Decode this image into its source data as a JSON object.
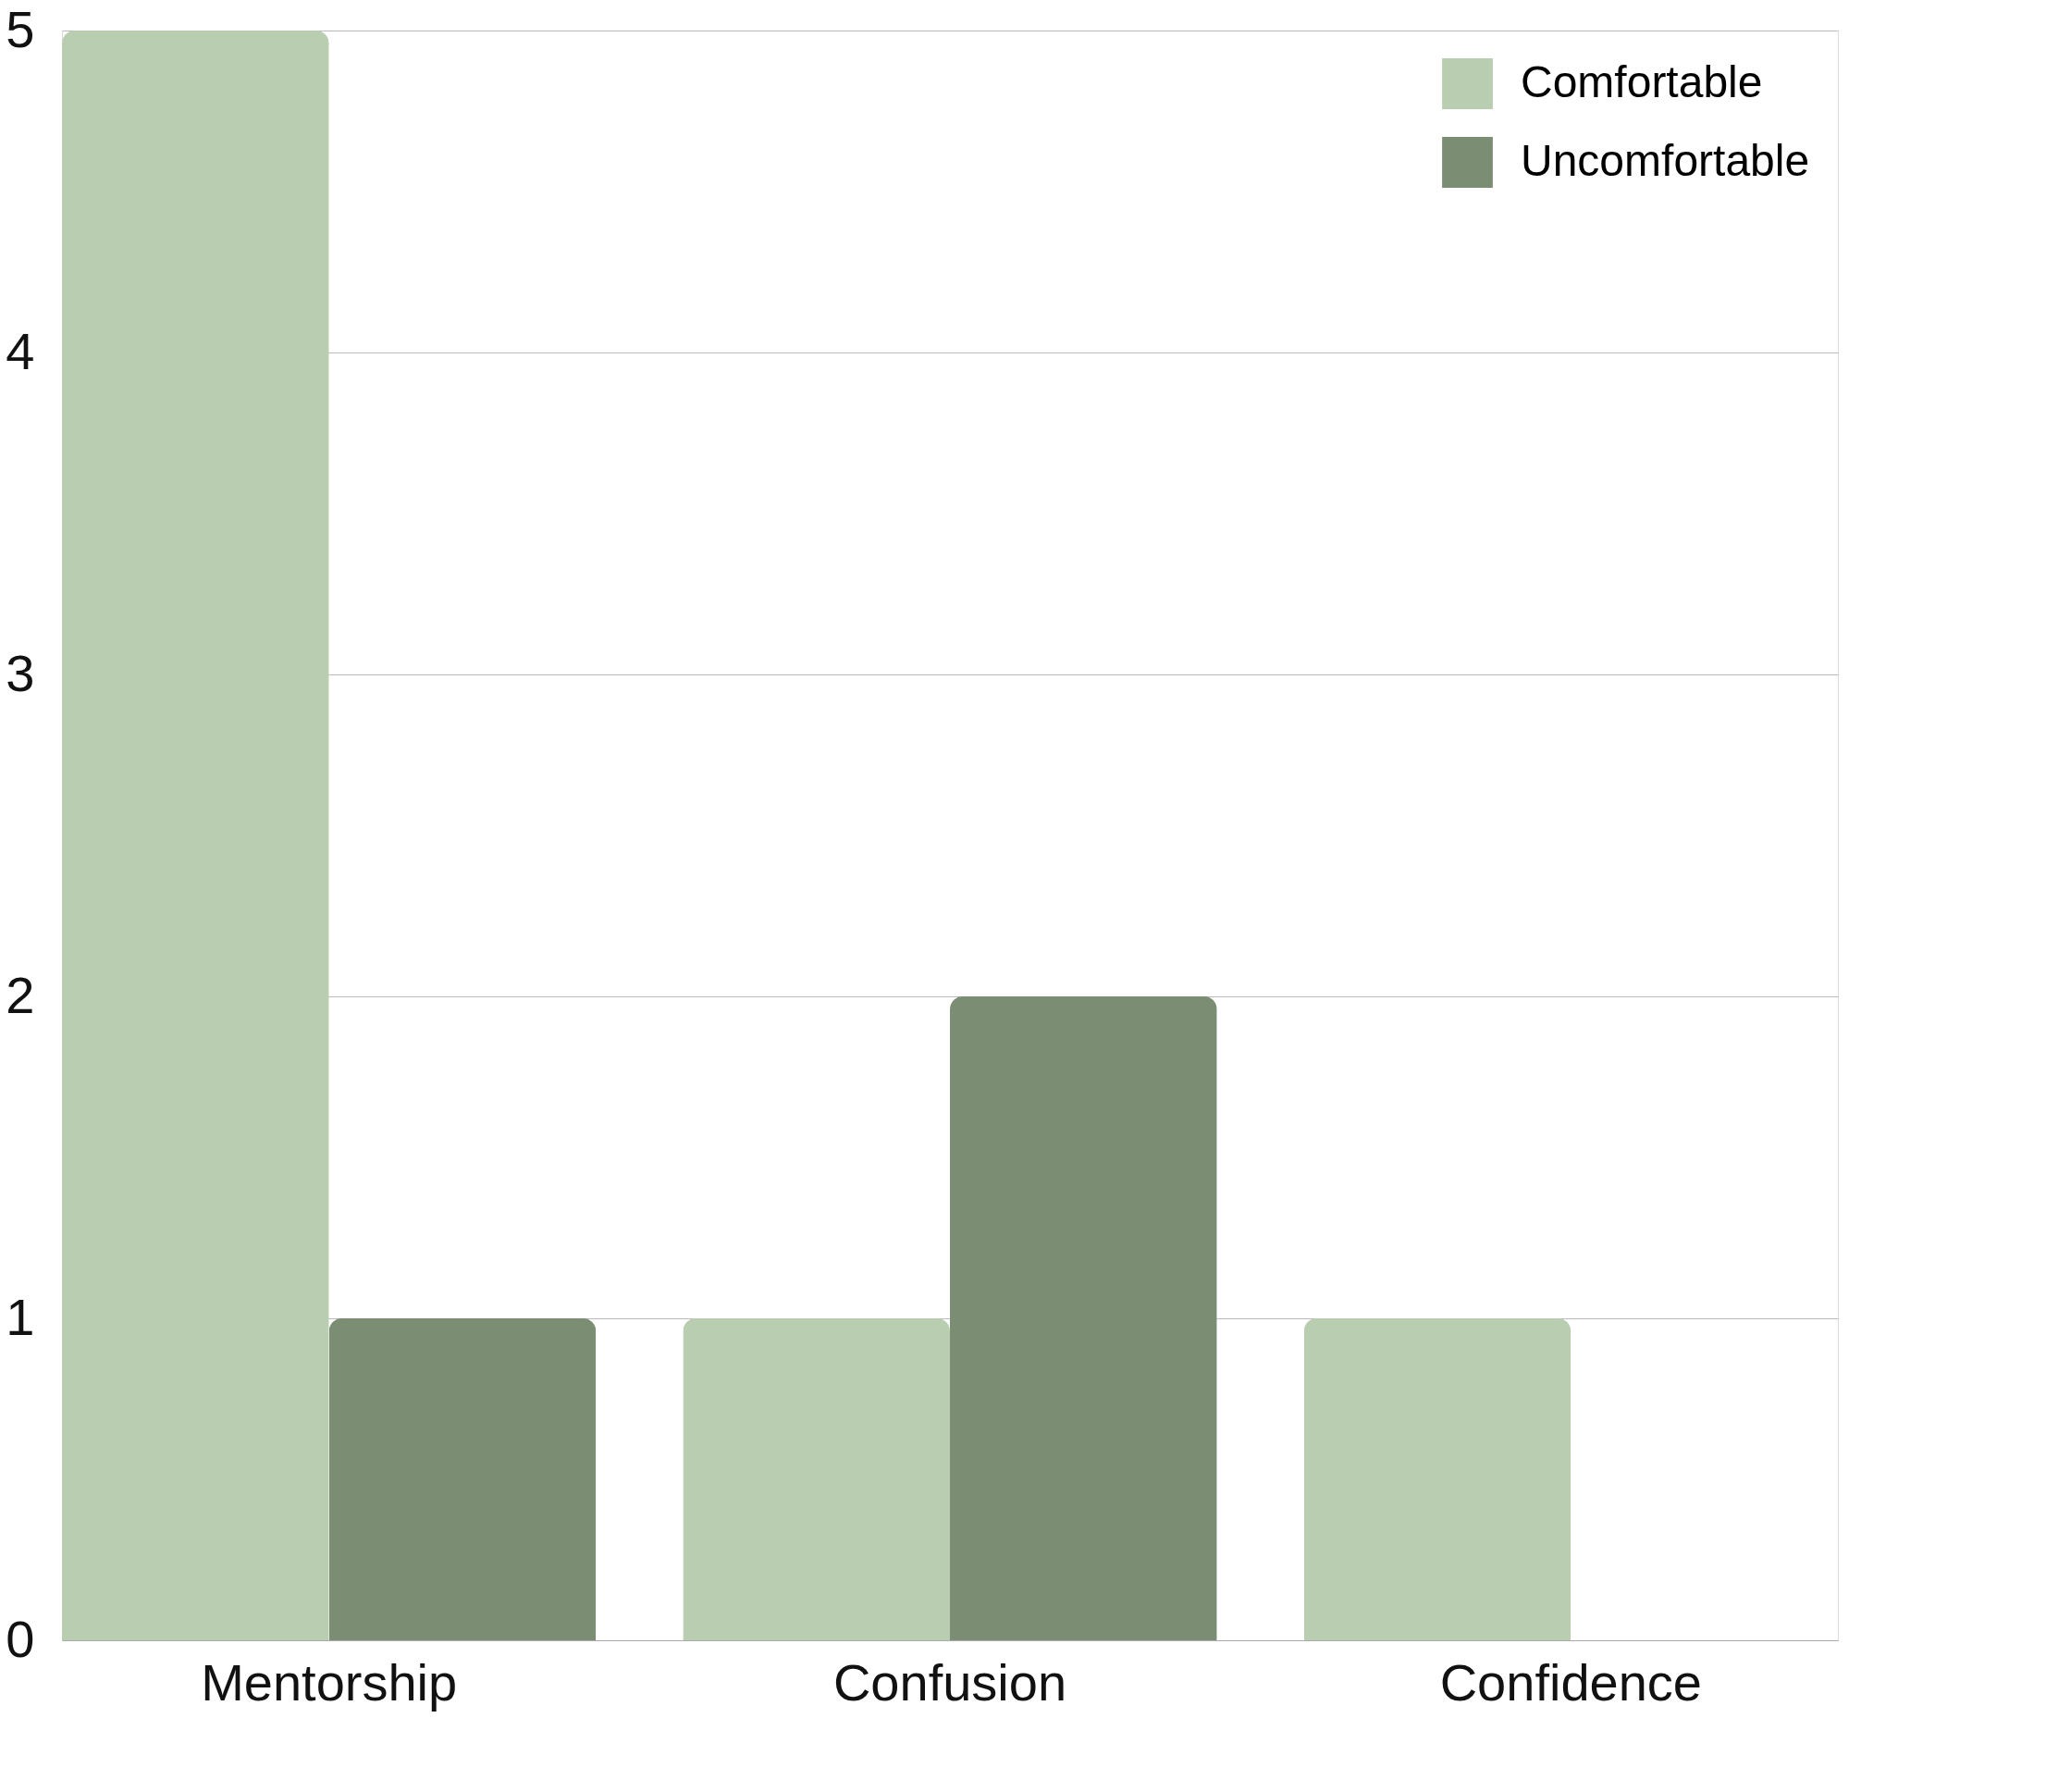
{
  "chart_data": {
    "type": "bar",
    "categories": [
      "Mentorship",
      "Confusion",
      "Confidence"
    ],
    "series": [
      {
        "name": "Comfortable",
        "color": "#b9cdb1",
        "values": [
          5,
          1,
          1
        ]
      },
      {
        "name": "Uncomfortable",
        "color": "#7b8d72",
        "values": [
          1,
          2,
          0
        ]
      }
    ],
    "ylim": [
      0,
      5
    ],
    "yticks": [
      0,
      1,
      2,
      3,
      4,
      5
    ],
    "grid": "y",
    "legend": "top right"
  }
}
